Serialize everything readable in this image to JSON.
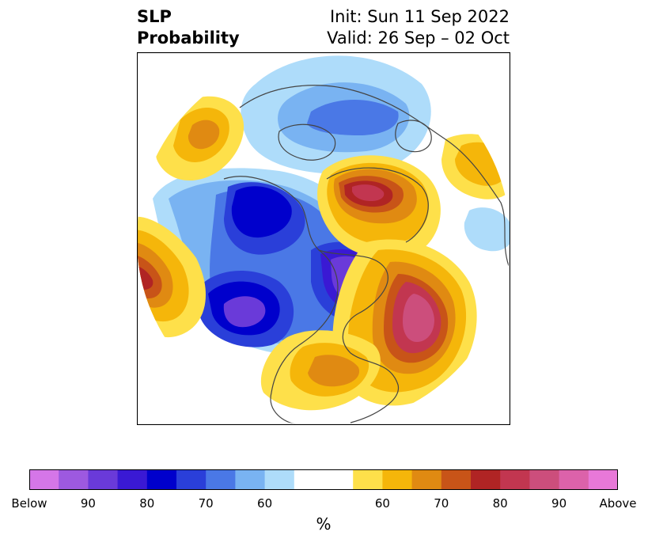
{
  "title": {
    "left_line1": "SLP",
    "left_line2": "Probability",
    "right_line1": "Init: Sun 11 Sep 2022",
    "right_line2": "Valid: 26 Sep – 02 Oct"
  },
  "colorbar": {
    "unit_label": "%",
    "below_colors": [
      "#d576e8",
      "#9d59e0",
      "#6a3ad9",
      "#3a19d4",
      "#0000cc",
      "#2a3fd9",
      "#4a78e6",
      "#79b3f2",
      "#aedcfa"
    ],
    "neutral_color": "#ffffff",
    "above_colors": [
      "#fee04a",
      "#f5b60a",
      "#e08a12",
      "#c85418",
      "#b02424",
      "#c23650",
      "#cc4e7c",
      "#dc62aa",
      "#e878d8"
    ],
    "tick_labels": [
      {
        "text": "Below",
        "index": 0
      },
      {
        "text": "90",
        "index": 2
      },
      {
        "text": "80",
        "index": 4
      },
      {
        "text": "70",
        "index": 6
      },
      {
        "text": "60",
        "index": 8
      },
      {
        "text": "60",
        "index": 12
      },
      {
        "text": "70",
        "index": 14
      },
      {
        "text": "80",
        "index": 16
      },
      {
        "text": "90",
        "index": 18
      },
      {
        "text": "Above",
        "index": 20
      }
    ]
  }
}
